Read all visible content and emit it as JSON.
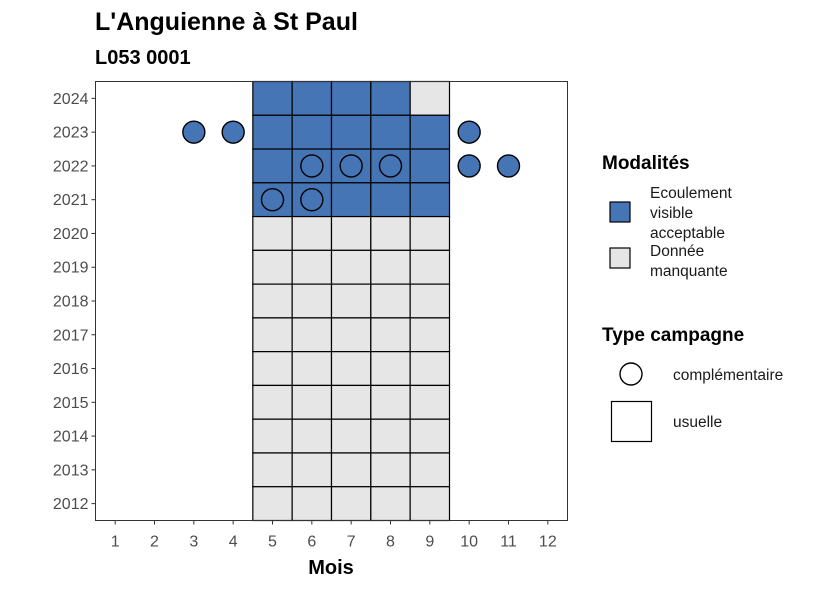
{
  "chart_data": {
    "type": "heatmap",
    "title": "L'Anguienne à St Paul",
    "subtitle": "L053 0001",
    "xlabel": "Mois",
    "ylabel": "",
    "x_ticks": [
      "1",
      "2",
      "3",
      "4",
      "5",
      "6",
      "7",
      "8",
      "9",
      "10",
      "11",
      "12"
    ],
    "y_ticks": [
      "2012",
      "2013",
      "2014",
      "2015",
      "2016",
      "2017",
      "2018",
      "2019",
      "2020",
      "2021",
      "2022",
      "2023",
      "2024"
    ],
    "xlim": [
      0.5,
      12.5
    ],
    "ylim": [
      2011.5,
      2024.5
    ],
    "colors": {
      "ecoulement": "#4575b4",
      "manquante": "#e6e6e6",
      "outline": "#000000"
    },
    "legend_modalites": {
      "title": "Modalités",
      "items": [
        {
          "key": "ecoulement",
          "lines": [
            "Ecoulement",
            "visible",
            "acceptable"
          ]
        },
        {
          "key": "manquante",
          "lines": [
            "Donnée",
            "manquante"
          ]
        }
      ]
    },
    "legend_type": {
      "title": "Type campagne",
      "items": [
        {
          "shape": "circle",
          "label": "complémentaire"
        },
        {
          "shape": "square",
          "label": "usuelle"
        }
      ]
    },
    "usuelle_cells": [
      {
        "year": 2024,
        "months": [
          5,
          6,
          7,
          8
        ],
        "modalite": "ecoulement"
      },
      {
        "year": 2024,
        "months": [
          9
        ],
        "modalite": "manquante"
      },
      {
        "year": 2023,
        "months": [
          5,
          6,
          7,
          8,
          9
        ],
        "modalite": "ecoulement"
      },
      {
        "year": 2022,
        "months": [
          5,
          6,
          7,
          8,
          9
        ],
        "modalite": "ecoulement"
      },
      {
        "year": 2021,
        "months": [
          5,
          6,
          7,
          8,
          9
        ],
        "modalite": "ecoulement"
      },
      {
        "year": 2020,
        "months": [
          5,
          6,
          7,
          8,
          9
        ],
        "modalite": "manquante"
      },
      {
        "year": 2019,
        "months": [
          5,
          6,
          7,
          8,
          9
        ],
        "modalite": "manquante"
      },
      {
        "year": 2018,
        "months": [
          5,
          6,
          7,
          8,
          9
        ],
        "modalite": "manquante"
      },
      {
        "year": 2017,
        "months": [
          5,
          6,
          7,
          8,
          9
        ],
        "modalite": "manquante"
      },
      {
        "year": 2016,
        "months": [
          5,
          6,
          7,
          8,
          9
        ],
        "modalite": "manquante"
      },
      {
        "year": 2015,
        "months": [
          5,
          6,
          7,
          8,
          9
        ],
        "modalite": "manquante"
      },
      {
        "year": 2014,
        "months": [
          5,
          6,
          7,
          8,
          9
        ],
        "modalite": "manquante"
      },
      {
        "year": 2013,
        "months": [
          5,
          6,
          7,
          8,
          9
        ],
        "modalite": "manquante"
      },
      {
        "year": 2012,
        "months": [
          5,
          6,
          7,
          8,
          9
        ],
        "modalite": "manquante"
      }
    ],
    "complementaire_points": [
      {
        "year": 2023,
        "month": 3,
        "modalite": "ecoulement"
      },
      {
        "year": 2023,
        "month": 4,
        "modalite": "ecoulement"
      },
      {
        "year": 2023,
        "month": 10,
        "modalite": "ecoulement"
      },
      {
        "year": 2022,
        "month": 6,
        "modalite": "ecoulement"
      },
      {
        "year": 2022,
        "month": 7,
        "modalite": "ecoulement"
      },
      {
        "year": 2022,
        "month": 8,
        "modalite": "ecoulement"
      },
      {
        "year": 2022,
        "month": 10,
        "modalite": "ecoulement"
      },
      {
        "year": 2022,
        "month": 11,
        "modalite": "ecoulement"
      },
      {
        "year": 2021,
        "month": 5,
        "modalite": "ecoulement"
      },
      {
        "year": 2021,
        "month": 6,
        "modalite": "ecoulement"
      }
    ]
  }
}
